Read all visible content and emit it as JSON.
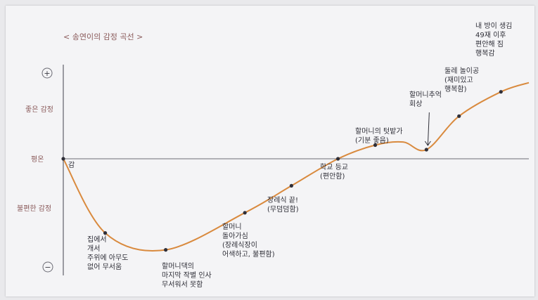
{
  "chart_data": {
    "type": "line",
    "title": "< 송연이의 감정 곡선 >",
    "y_ticks": {
      "plus": "+",
      "good": "좋은 감정",
      "neutral": "평온",
      "bad": "불편한 감정",
      "minus": "−"
    },
    "ylim": [
      -3,
      3
    ],
    "xlim": [
      0,
      10
    ],
    "points": [
      {
        "x": 0.0,
        "y": 0.0
      },
      {
        "x": 0.9,
        "y": -2.2
      },
      {
        "x": 2.2,
        "y": -2.7
      },
      {
        "x": 3.9,
        "y": -1.6
      },
      {
        "x": 4.9,
        "y": -0.8
      },
      {
        "x": 5.9,
        "y": 0.0
      },
      {
        "x": 6.7,
        "y": 0.45
      },
      {
        "x": 7.3,
        "y": 0.55
      },
      {
        "x": 7.8,
        "y": 0.3
      },
      {
        "x": 8.5,
        "y": 1.4
      },
      {
        "x": 9.4,
        "y": 2.2
      },
      {
        "x": 10.0,
        "y": 2.5
      }
    ],
    "annotations": [
      {
        "lines": [
          "감"
        ]
      },
      {
        "lines": [
          "집에서",
          "개서",
          "주위에 아무도",
          "없어 무서움"
        ]
      },
      {
        "lines": [
          "할머니댁의",
          "마지막 작별 인사",
          "무서워서 못함"
        ]
      },
      {
        "lines": [
          "할머니",
          "돌아가심",
          "(장례식장이",
          "어색하고, 불편함)"
        ]
      },
      {
        "lines": [
          "장례식 끝!",
          "(무덤덤함)"
        ]
      },
      {
        "lines": [
          "학교 등교",
          "(편안함)"
        ]
      },
      {
        "lines": [
          "할머니의 텃밭가",
          "(기분 좋음)"
        ]
      },
      {
        "lines": [
          "할머니추억",
          "회상"
        ]
      },
      {
        "lines": [
          "둘레 놀이공",
          "(재미있고",
          "행복함)"
        ]
      },
      {
        "lines": [
          "내 방이 생김",
          "49재 이후",
          "편안해 짐",
          "행복감"
        ]
      }
    ]
  }
}
